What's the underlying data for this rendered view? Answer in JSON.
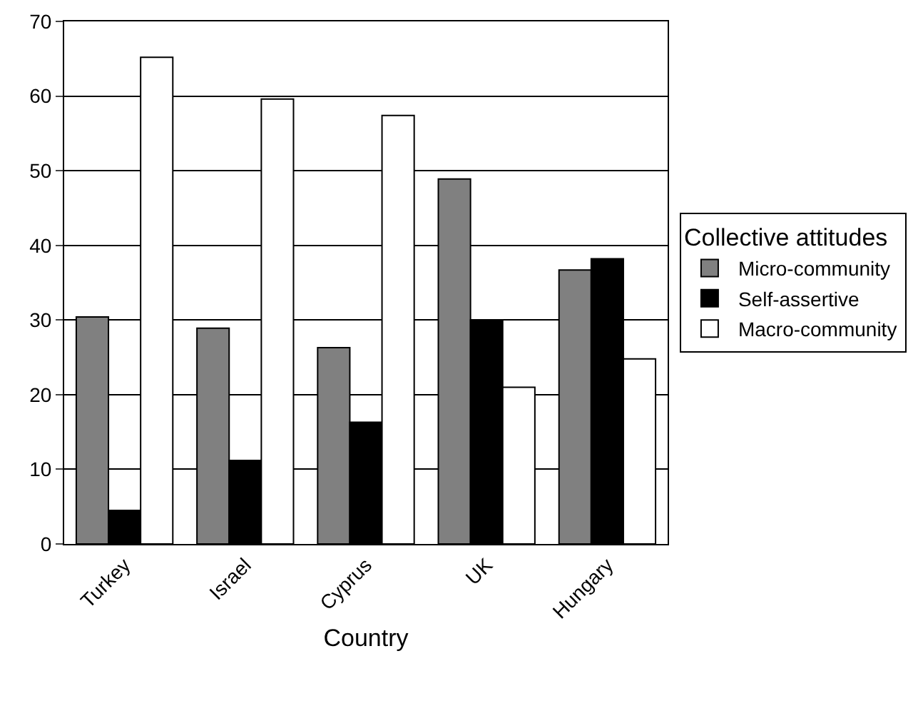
{
  "chart_data": {
    "type": "bar",
    "xlabel": "Country",
    "legend_title": "Collective attitudes",
    "categories": [
      "Turkey",
      "Israel",
      "Cyprus",
      "UK",
      "Hungary"
    ],
    "series": [
      {
        "name": "Micro-community",
        "color": "#808080",
        "values": [
          30.4,
          28.9,
          26.3,
          48.9,
          36.7
        ]
      },
      {
        "name": "Self-assertive",
        "color": "#000000",
        "values": [
          4.5,
          11.2,
          16.3,
          30,
          38.2
        ]
      },
      {
        "name": "Macro-community",
        "color": "#ffffff",
        "values": [
          65.2,
          59.6,
          57.4,
          21,
          24.8
        ]
      }
    ],
    "ylim": [
      0,
      70
    ],
    "yticks": [
      0,
      10,
      20,
      30,
      40,
      50,
      60,
      70
    ],
    "grid": "y",
    "legend": "right"
  }
}
